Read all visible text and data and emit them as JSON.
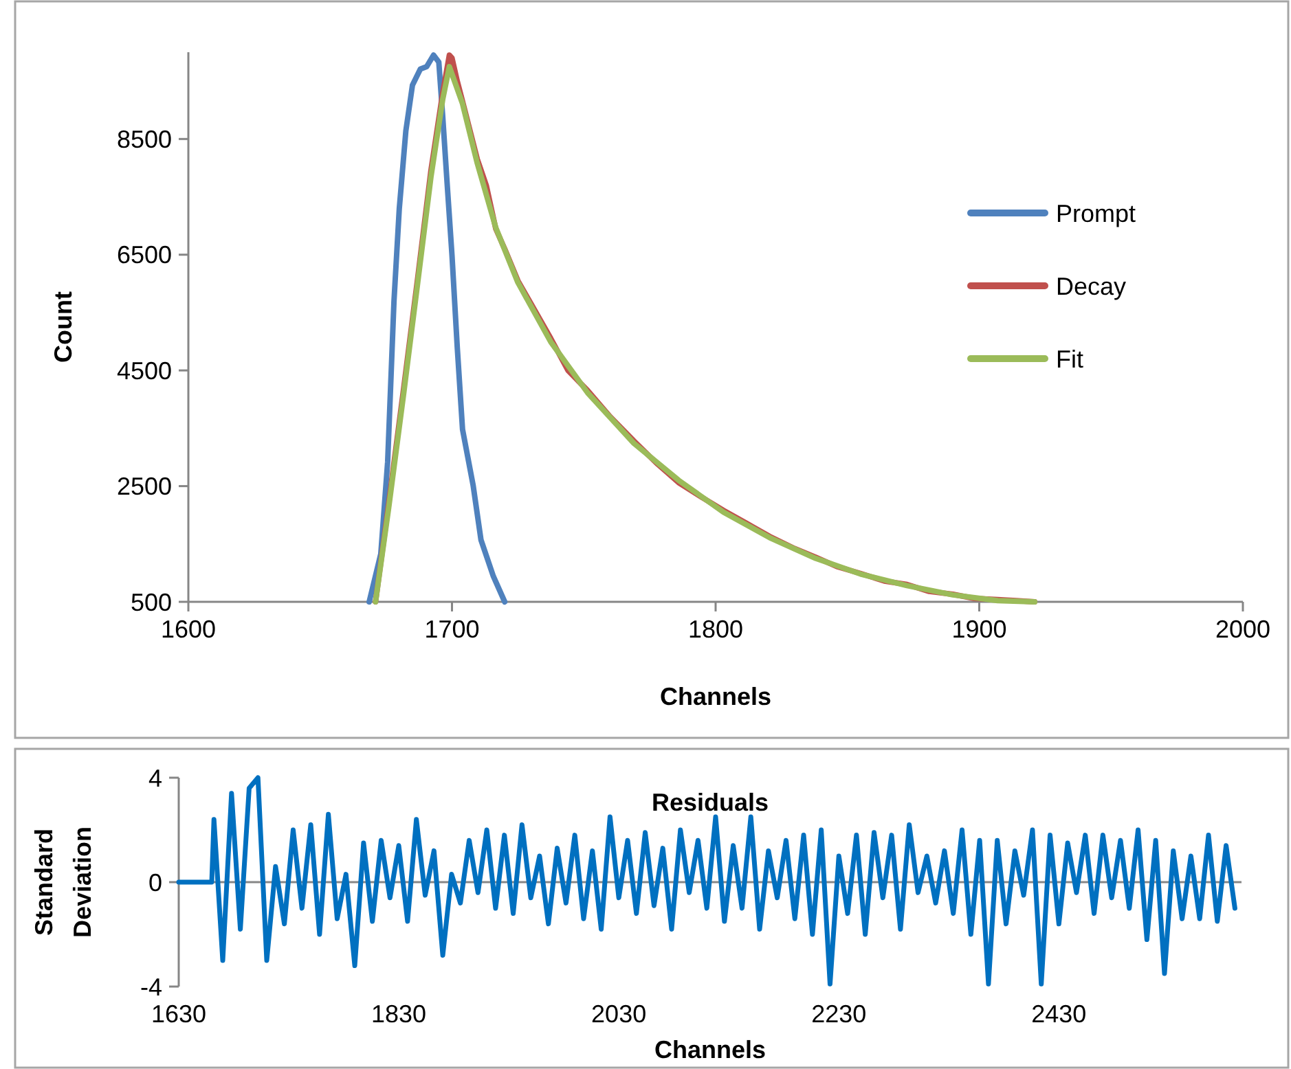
{
  "chart_data": [
    {
      "type": "line",
      "xlabel": "Channels",
      "ylabel": "Count",
      "xlim": [
        1600,
        2000
      ],
      "xticks": [
        1600,
        1700,
        1800,
        1900,
        2000
      ],
      "ylim": [
        500,
        10000
      ],
      "yticks": [
        500,
        2500,
        4500,
        6500,
        8500
      ],
      "legend": "right",
      "grid": false,
      "marker": "none",
      "series": [
        {
          "name": "Prompt",
          "color": "#4f81bd",
          "x": [
            1668.6,
            1673,
            1675.6,
            1678,
            1680,
            1682.5,
            1685,
            1688,
            1690.4,
            1693,
            1695,
            1696.5,
            1698,
            1700,
            1702,
            1704,
            1708,
            1711,
            1715.7,
            1720
          ],
          "values": [
            500,
            1330,
            2920,
            5700,
            7290,
            8640,
            9430,
            9710,
            9750,
            9950,
            9830,
            8880,
            7840,
            6490,
            4900,
            3480,
            2520,
            1570,
            940,
            500
          ]
        },
        {
          "name": "Decay",
          "color": "#c0504d",
          "x": [
            1671,
            1676,
            1681.7,
            1687,
            1692,
            1696.5,
            1699,
            1700,
            1702,
            1704,
            1709.6,
            1713,
            1716.6,
            1720,
            1725,
            1730,
            1737.5,
            1744,
            1751.5,
            1760,
            1769,
            1778,
            1786,
            1795,
            1803,
            1812,
            1820.5,
            1830,
            1838,
            1846,
            1855,
            1864,
            1872.6,
            1881,
            1890,
            1898,
            1907,
            1914,
            1921
          ],
          "values": [
            500,
            2200,
            4200,
            6100,
            7950,
            9300,
            9950,
            9900,
            9500,
            9150,
            8150,
            7700,
            6950,
            6600,
            6050,
            5650,
            5050,
            4500,
            4150,
            3700,
            3280,
            2880,
            2560,
            2300,
            2080,
            1850,
            1630,
            1420,
            1270,
            1110,
            990,
            860,
            800,
            680,
            630,
            560,
            540,
            520,
            500
          ]
        },
        {
          "name": "Fit",
          "color": "#9bbb59",
          "x": [
            1671,
            1676,
            1681.7,
            1687,
            1692,
            1696.5,
            1699,
            1704,
            1709.6,
            1716.6,
            1725,
            1737.5,
            1751.5,
            1769,
            1786,
            1803,
            1820.5,
            1838,
            1855,
            1872.6,
            1890,
            1907,
            1921
          ],
          "values": [
            500,
            2130,
            4110,
            6020,
            7840,
            9190,
            9750,
            9110,
            8080,
            6970,
            6020,
            4990,
            4110,
            3240,
            2600,
            2050,
            1610,
            1250,
            980,
            780,
            620,
            520,
            500
          ]
        }
      ]
    },
    {
      "type": "line",
      "title": "Residuals",
      "xlabel": "Channels",
      "ylabel": "Standard Deviation",
      "xlim": [
        1630,
        2596
      ],
      "xticks": [
        1630,
        1830,
        2030,
        2230,
        2430
      ],
      "ylim": [
        -4,
        4
      ],
      "yticks": [
        -4,
        0,
        4
      ],
      "ref_lines": [
        {
          "axis": "y",
          "value": 0
        }
      ],
      "legend": false,
      "grid": false,
      "marker": "none",
      "series": [
        {
          "color": "#0070c0",
          "x": [
            1630,
            1660,
            1662,
            1670,
            1678,
            1686,
            1694,
            1702,
            1710,
            1718,
            1726,
            1734,
            1742,
            1750,
            1758,
            1766,
            1774,
            1782,
            1790,
            1798,
            1806,
            1814,
            1822,
            1830,
            1838,
            1846,
            1854,
            1862,
            1870,
            1878,
            1886,
            1894,
            1902,
            1910,
            1918,
            1926,
            1934,
            1942,
            1950,
            1958,
            1966,
            1974,
            1982,
            1990,
            1998,
            2006,
            2014,
            2022,
            2030,
            2038,
            2046,
            2054,
            2062,
            2070,
            2078,
            2086,
            2094,
            2102,
            2110,
            2118,
            2126,
            2134,
            2142,
            2150,
            2158,
            2166,
            2174,
            2182,
            2190,
            2198,
            2206,
            2214,
            2222,
            2230,
            2238,
            2246,
            2254,
            2262,
            2270,
            2278,
            2286,
            2294,
            2302,
            2310,
            2318,
            2326,
            2334,
            2342,
            2350,
            2358,
            2366,
            2374,
            2382,
            2390,
            2398,
            2406,
            2414,
            2422,
            2430,
            2438,
            2446,
            2454,
            2462,
            2470,
            2478,
            2486,
            2494,
            2502,
            2510,
            2518,
            2526,
            2534,
            2542,
            2550,
            2558,
            2566,
            2574,
            2582,
            2590
          ],
          "values": [
            0,
            0,
            2.4,
            -3.0,
            3.4,
            -1.8,
            3.6,
            4.0,
            -3.0,
            0.6,
            -1.6,
            2.0,
            -1.0,
            2.2,
            -2.0,
            2.6,
            -1.4,
            0.3,
            -3.2,
            1.5,
            -1.5,
            1.6,
            -0.6,
            1.4,
            -1.5,
            2.4,
            -0.5,
            1.2,
            -2.8,
            0.3,
            -0.8,
            1.6,
            -0.4,
            2.0,
            -1.0,
            1.8,
            -1.2,
            2.2,
            -0.6,
            1.0,
            -1.6,
            1.3,
            -0.8,
            1.8,
            -1.4,
            1.2,
            -1.8,
            2.5,
            -0.6,
            1.6,
            -1.2,
            1.9,
            -0.9,
            1.3,
            -1.8,
            2.0,
            -0.4,
            1.6,
            -1.0,
            2.5,
            -1.5,
            1.4,
            -1.0,
            2.5,
            -1.8,
            1.2,
            -0.6,
            1.6,
            -1.4,
            1.8,
            -2.0,
            2.0,
            -3.9,
            1.0,
            -1.2,
            1.8,
            -2.0,
            1.9,
            -0.6,
            1.8,
            -1.8,
            2.2,
            -0.4,
            1.0,
            -0.8,
            1.2,
            -1.2,
            2.0,
            -2.0,
            1.6,
            -3.9,
            1.6,
            -1.6,
            1.2,
            -0.5,
            2.0,
            -3.9,
            1.8,
            -1.6,
            1.5,
            -0.4,
            1.8,
            -1.2,
            1.8,
            -0.6,
            1.6,
            -1.0,
            2.0,
            -2.2,
            1.6,
            -3.5,
            1.2,
            -1.4,
            1.0,
            -1.4,
            1.8,
            -1.5,
            1.4,
            -1.0
          ]
        }
      ]
    }
  ]
}
